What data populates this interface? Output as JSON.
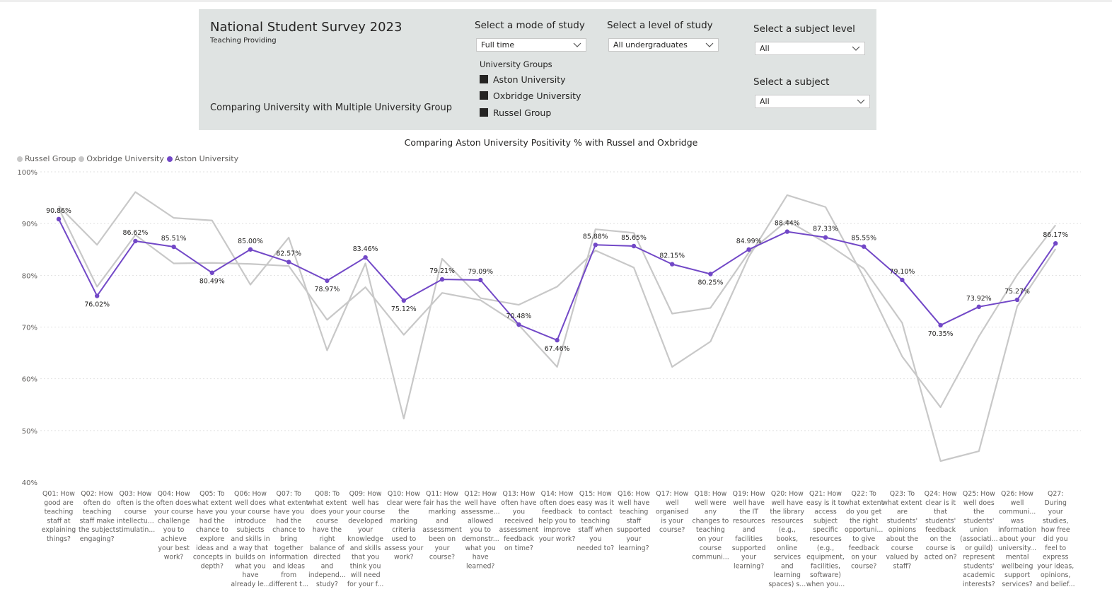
{
  "header": {
    "title": "National Student Survey 2023",
    "subtitle": "Teaching Providing",
    "comparing_label": "Comparing University with Multiple University  Group"
  },
  "filters": {
    "mode": {
      "label": "Select a mode of study",
      "value": "Full time"
    },
    "level": {
      "label": "Select a level of study",
      "value": "All undergraduates"
    },
    "subject_level": {
      "label": "Select a subject level",
      "value": "All"
    },
    "subject": {
      "label": "Select a subject",
      "value": "All"
    },
    "university_groups": {
      "title": "University Groups",
      "items": [
        "Aston University",
        "Oxbridge University",
        "Russel Group"
      ]
    }
  },
  "colors": {
    "accent": "#7248c7",
    "comparison": "#c8c8c8",
    "panel": "#dfe3e2"
  },
  "chart_data": {
    "type": "line",
    "title": "Comparing Aston University Positivity % with Russel and Oxbridge",
    "legend": [
      "Russel Group",
      "Oxbridge University",
      "Aston University"
    ],
    "legend_position": "top-left",
    "ylim": [
      40,
      100
    ],
    "yticks": [
      "40%",
      "50%",
      "60%",
      "70%",
      "80%",
      "90%",
      "100%"
    ],
    "grid": true,
    "categories": [
      [
        "Q01: How",
        "good are",
        "teaching",
        "staff at",
        "explaining",
        "things?"
      ],
      [
        "Q02: How",
        "often do",
        "teaching",
        "staff make",
        "the subject",
        "engaging?"
      ],
      [
        "Q03: How",
        "often is the",
        "course",
        "intellectu...",
        "stimulatin..."
      ],
      [
        "Q04: How",
        "often does",
        "your course",
        "challenge",
        "you to",
        "achieve",
        "your best",
        "work?"
      ],
      [
        "Q05: To",
        "what extent",
        "have you",
        "had the",
        "chance to",
        "explore",
        "ideas and",
        "concepts in",
        "depth?"
      ],
      [
        "Q06: How",
        "well does",
        "your course",
        "introduce",
        "subjects",
        "and skills in",
        "a way that",
        "builds on",
        "what you",
        "have",
        "already le..."
      ],
      [
        "Q07: To",
        "what extent",
        "have you",
        "had the",
        "chance to",
        "bring",
        "together",
        "information",
        "and ideas",
        "from",
        "different t..."
      ],
      [
        "Q08: To",
        "what extent",
        "does your",
        "course",
        "have the",
        "right",
        "balance of",
        "directed",
        "and",
        "independ...",
        "study?"
      ],
      [
        "Q09: How",
        "well has",
        "your course",
        "developed",
        "your",
        "knowledge",
        "and skills",
        "that you",
        "think you",
        "will need",
        "for your f..."
      ],
      [
        "Q10: How",
        "clear were",
        "the",
        "marking",
        "criteria",
        "used to",
        "assess your",
        "work?"
      ],
      [
        "Q11: How",
        "fair has the",
        "marking",
        "and",
        "assessment",
        "been on",
        "your",
        "course?"
      ],
      [
        "Q12: How",
        "well have",
        "assessme...",
        "allowed",
        "you to",
        "demonstr...",
        "what you",
        "have",
        "learned?"
      ],
      [
        "Q13: How",
        "often have",
        "you",
        "received",
        "assessment",
        "feedback",
        "on time?"
      ],
      [
        "Q14: How",
        "often does",
        "feedback",
        "help you to",
        "improve",
        "your work?"
      ],
      [
        "Q15: How",
        "easy was it",
        "to contact",
        "teaching",
        "staff when",
        "you",
        "needed to?"
      ],
      [
        "Q16: How",
        "well have",
        "teaching",
        "staff",
        "supported",
        "your",
        "learning?"
      ],
      [
        "Q17: How",
        "well",
        "organised",
        "is your",
        "course?"
      ],
      [
        "Q18: How",
        "well were",
        "any",
        "changes to",
        "teaching",
        "on your",
        "course",
        "communi..."
      ],
      [
        "Q19: How",
        "well have",
        "the IT",
        "resources",
        "and",
        "facilities",
        "supported",
        "your",
        "learning?"
      ],
      [
        "Q20: How",
        "well have",
        "the library",
        "resources",
        "(e.g.,",
        "books,",
        "online",
        "services",
        "and",
        "learning",
        "spaces) s..."
      ],
      [
        "Q21: How",
        "easy is it to",
        "access",
        "subject",
        "specific",
        "resources",
        "(e.g.,",
        "equipment,",
        "facilities,",
        "software)",
        "when you..."
      ],
      [
        "Q22: To",
        "what extent",
        "do you get",
        "the right",
        "opportuni...",
        "to give",
        "feedback",
        "on your",
        "course?"
      ],
      [
        "Q23: To",
        "what extent",
        "are",
        "students'",
        "opinions",
        "about the",
        "course",
        "valued by",
        "staff?"
      ],
      [
        "Q24: How",
        "clear is it",
        "that",
        "students'",
        "feedback",
        "on the",
        "course is",
        "acted on?"
      ],
      [
        "Q25: How",
        "well does",
        "the",
        "students'",
        "union",
        "(associati...",
        "or guild)",
        "represent",
        "students'",
        "academic",
        "interests?"
      ],
      [
        "Q26: How",
        "well",
        "communi...",
        "was",
        "information",
        "about your",
        "university...",
        "mental",
        "wellbeing",
        "support",
        "services?"
      ],
      [
        "Q27:",
        "During",
        "your",
        "studies,",
        "how free",
        "did you",
        "feel to",
        "express",
        "your ideas,",
        "opinions,",
        "and belief..."
      ]
    ],
    "series": [
      {
        "name": "Aston University",
        "color": "#7248c7",
        "values": [
          90.86,
          76.02,
          86.62,
          85.51,
          80.49,
          85.0,
          82.57,
          78.97,
          83.46,
          75.12,
          79.21,
          79.09,
          70.48,
          67.46,
          85.88,
          85.65,
          82.15,
          80.25,
          84.99,
          88.44,
          87.33,
          85.55,
          79.1,
          70.35,
          73.92,
          75.27,
          86.17
        ],
        "labels": [
          "90.86%",
          "76.02%",
          "86.62%",
          "85.51%",
          "80.49%",
          "85.00%",
          "82.57%",
          "78.97%",
          "83.46%",
          "75.12%",
          "79.21%",
          "79.09%",
          "70.48%",
          "67.46%",
          "85.88%",
          "85.65%",
          "82.15%",
          "80.25%",
          "84.99%",
          "88.44%",
          "87.33%",
          "85.55%",
          "79.10%",
          "70.35%",
          "73.92%",
          "75.27%",
          "86.17%"
        ]
      },
      {
        "name": "Russel Group",
        "color": "#c8c8c8",
        "values": [
          93.4,
          85.9,
          96.1,
          91.1,
          90.6,
          78.2,
          87.3,
          65.5,
          82.3,
          52.3,
          83.2,
          75.6,
          74.3,
          77.8,
          84.8,
          81.5,
          62.3,
          67.2,
          83.6,
          95.5,
          93.2,
          79.6,
          64.3,
          54.5,
          68.2,
          80.1,
          89.7
        ]
      },
      {
        "name": "Oxbridge University",
        "color": "#c8c8c8",
        "values": [
          93.0,
          77.8,
          87.8,
          82.3,
          82.4,
          82.2,
          81.8,
          71.4,
          77.7,
          68.5,
          76.6,
          75.2,
          70.4,
          62.3,
          88.9,
          88.2,
          72.6,
          73.7,
          84.4,
          90.6,
          86.3,
          81.3,
          70.8,
          44.1,
          46.0,
          74.0,
          85.1
        ]
      }
    ]
  }
}
